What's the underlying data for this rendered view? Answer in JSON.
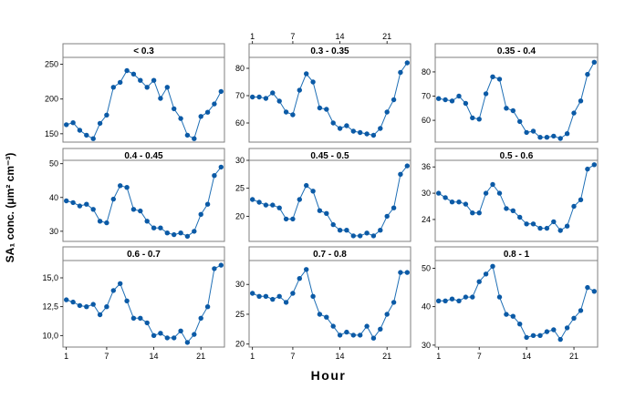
{
  "chart_data": {
    "type": "line",
    "xlabel": "Hour",
    "ylabel": "SA₁ conc. (μm² cm⁻³)",
    "x": [
      1,
      2,
      3,
      4,
      5,
      6,
      7,
      8,
      9,
      10,
      11,
      12,
      13,
      14,
      15,
      16,
      17,
      18,
      19,
      20,
      21,
      22,
      23,
      24
    ],
    "x_ticks": [
      1,
      7,
      14,
      21
    ],
    "panels": [
      {
        "title": "< 0.3",
        "ylim": [
          138,
          260
        ],
        "y_ticks": [
          150,
          200,
          250
        ],
        "y_tick_labels": [
          "150",
          "200",
          "250"
        ],
        "values": [
          163,
          166,
          155,
          148,
          143,
          165,
          177,
          217,
          224,
          241,
          236,
          227,
          217,
          227,
          201,
          217,
          186,
          172,
          148,
          143,
          175,
          181,
          193,
          211
        ]
      },
      {
        "title": "0.3 - 0.35",
        "ylim": [
          53,
          84
        ],
        "y_ticks": [
          60,
          70,
          80
        ],
        "y_tick_labels": [
          "60",
          "70",
          "80"
        ],
        "values": [
          69.5,
          69.5,
          69,
          71,
          68,
          64,
          63,
          72,
          78,
          75,
          65.5,
          65,
          60,
          58,
          59,
          57,
          56.5,
          56,
          55.5,
          58,
          64,
          68.5,
          78.5,
          82
        ]
      },
      {
        "title": "0.35 - 0.4",
        "ylim": [
          51,
          86
        ],
        "y_ticks": [
          60,
          70,
          80
        ],
        "y_tick_labels": [
          "60",
          "70",
          "80"
        ],
        "values": [
          69,
          68.5,
          68,
          70,
          67,
          61,
          60.5,
          71,
          78,
          77,
          65,
          64,
          59.5,
          55,
          55.5,
          53,
          53,
          53.5,
          52.5,
          54.5,
          63,
          68,
          79,
          84
        ]
      },
      {
        "title": "0.4 - 0.45",
        "ylim": [
          27,
          51
        ],
        "y_ticks": [
          30,
          40,
          50
        ],
        "y_tick_labels": [
          "30",
          "40",
          "50"
        ],
        "values": [
          39,
          38.5,
          37.5,
          38,
          36.5,
          33,
          32.5,
          39.5,
          43.5,
          43,
          36.5,
          36,
          33,
          31,
          31,
          29.5,
          29,
          29.5,
          28.5,
          30,
          35,
          38,
          46.5,
          49
        ]
      },
      {
        "title": "0.45 - 0.5",
        "ylim": [
          15.5,
          30
        ],
        "y_ticks": [
          20,
          25,
          30
        ],
        "y_tick_labels": [
          "20",
          "25",
          "30"
        ],
        "values": [
          23,
          22.5,
          22,
          22,
          21.5,
          19.5,
          19.5,
          23,
          25.5,
          24.5,
          21,
          20.5,
          18.5,
          17.5,
          17.5,
          16.5,
          16.5,
          17,
          16.5,
          17.5,
          20,
          21.5,
          27.5,
          29
        ]
      },
      {
        "title": "0.5 - 0.6",
        "ylim": [
          19,
          37.5
        ],
        "y_ticks": [
          24,
          30,
          36
        ],
        "y_tick_labels": [
          "24",
          "30",
          "36"
        ],
        "values": [
          30,
          29,
          28,
          28,
          27.5,
          25.5,
          25.5,
          30,
          32,
          30,
          26.5,
          26,
          24.5,
          23,
          23,
          22,
          22,
          23.5,
          21.5,
          22.5,
          27,
          28.5,
          35.5,
          36.5
        ]
      },
      {
        "title": "0.6 - 0.7",
        "ylim": [
          9,
          16.5
        ],
        "y_ticks": [
          10,
          12.5,
          15
        ],
        "y_tick_labels": [
          "10,0",
          "12,5",
          "15,0"
        ],
        "values": [
          13.1,
          12.9,
          12.6,
          12.5,
          12.7,
          11.8,
          12.5,
          13.9,
          14.5,
          13,
          11.5,
          11.5,
          11.1,
          10,
          10.2,
          9.8,
          9.8,
          10.4,
          9.4,
          10.1,
          11.5,
          12.5,
          15.8,
          16.1
        ]
      },
      {
        "title": "0.7 - 0.8",
        "ylim": [
          19.5,
          34
        ],
        "y_ticks": [
          20,
          25,
          30
        ],
        "y_tick_labels": [
          "20",
          "25",
          "30"
        ],
        "values": [
          28.5,
          28,
          28,
          27.5,
          28,
          27,
          28.5,
          31,
          32.5,
          28,
          25,
          24.5,
          23,
          21.5,
          22,
          21.5,
          21.5,
          23,
          21,
          22.5,
          25,
          27,
          32,
          32
        ]
      },
      {
        "title": "0.8 - 1",
        "ylim": [
          29.5,
          52
        ],
        "y_ticks": [
          30,
          40,
          50
        ],
        "y_tick_labels": [
          "30",
          "40",
          "50"
        ],
        "values": [
          41.5,
          41.5,
          42,
          41.5,
          42.5,
          42.5,
          46.5,
          48.5,
          50.5,
          42.5,
          38,
          37.5,
          35.5,
          32,
          32.5,
          32.5,
          33.5,
          34,
          31.5,
          34.5,
          37,
          39,
          45,
          44
        ]
      }
    ]
  }
}
